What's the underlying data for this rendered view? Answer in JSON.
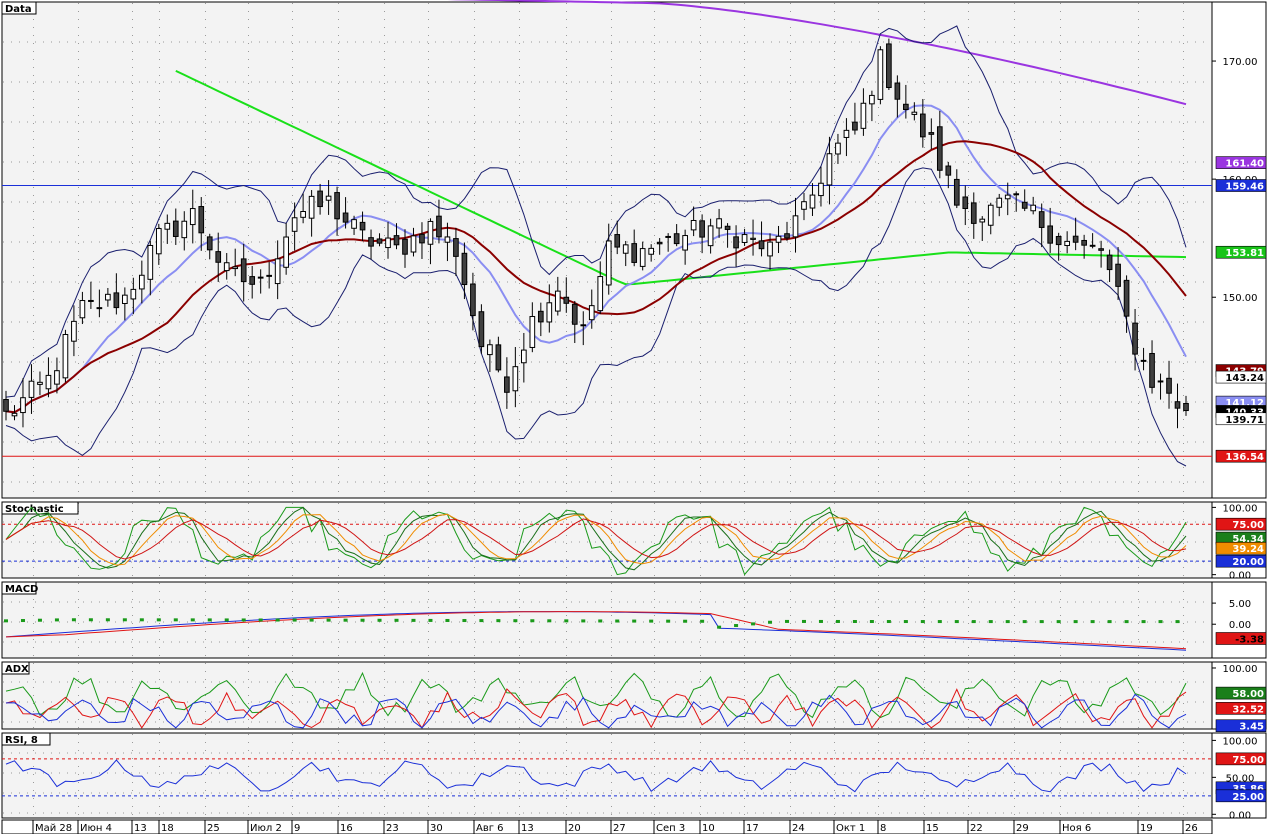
{
  "chart_data": {
    "type": "candlestick",
    "x_labels": [
      "Май 28",
      "Июн 4",
      "13",
      "18",
      "25",
      "Июл 2",
      "9",
      "16",
      "23",
      "30",
      "Авг 6",
      "13",
      "20",
      "27",
      "Сеп 3",
      "10",
      "17",
      "24",
      "Окт 1",
      "8",
      "15",
      "22",
      "29",
      "Ноя 6",
      "19",
      "26"
    ],
    "panels": [
      {
        "name": "price",
        "title": "Data",
        "ylim": [
          133,
          175
        ],
        "ticks": [
          170.0,
          160.0,
          150.0
        ],
        "price_line": 159.46,
        "support_line": 136.54,
        "badges": [
          {
            "value": "161.40",
            "color": "#9a35e0",
            "text_color": "#ffffff",
            "y_value": 161.4
          },
          {
            "value": "159.46",
            "color": "#1a2fd8",
            "text_color": "#ffffff",
            "y_value": 159.46
          },
          {
            "value": "153.81",
            "color": "#19c419",
            "text_color": "#ffffff",
            "y_value": 153.81
          },
          {
            "value": "143.79",
            "color": "#8b0000",
            "text_color": "#ffffff",
            "y_value": 143.79
          },
          {
            "value": "143.24",
            "color": "#ffffff",
            "text_color": "#000000",
            "y_value": 143.24
          },
          {
            "value": "141.12",
            "color": "#8a8ef2",
            "text_color": "#ffffff",
            "y_value": 141.12
          },
          {
            "value": "140.33",
            "color": "#000000",
            "text_color": "#ffffff",
            "y_value": 140.33
          },
          {
            "value": "139.71",
            "color": "#ffffff",
            "text_color": "#000000",
            "y_value": 139.71
          },
          {
            "value": "136.54",
            "color": "#e01515",
            "text_color": "#ffffff",
            "y_value": 136.54
          }
        ]
      },
      {
        "name": "stochastic",
        "title": "Stochastic",
        "ylim": [
          -5,
          108
        ],
        "ticks": [
          100.0,
          0.0
        ],
        "levels": [
          75,
          20
        ],
        "badges": [
          {
            "value": "75.00",
            "color": "#e01515",
            "text_color": "#ffffff",
            "y_value": 75
          },
          {
            "value": "54.34",
            "color": "#1a7f1a",
            "text_color": "#ffffff",
            "y_value": 54.34
          },
          {
            "value": "39.24",
            "color": "#f08c00",
            "text_color": "#ffffff",
            "y_value": 39.24
          },
          {
            "value": "20.00",
            "color": "#1a2fd8",
            "text_color": "#ffffff",
            "y_value": 20
          }
        ]
      },
      {
        "name": "macd",
        "title": "MACD",
        "ylim": [
          -8,
          10
        ],
        "ticks": [
          5.0,
          0.0
        ],
        "badges": [
          {
            "value": "-3.38",
            "color": "#e01515",
            "text_color": "#000000",
            "y_value": -3.38
          }
        ]
      },
      {
        "name": "adx",
        "title": "ADX",
        "ylim": [
          -2,
          110
        ],
        "ticks": [
          100.0
        ],
        "badges": [
          {
            "value": "58.00",
            "color": "#1a7f1a",
            "text_color": "#ffffff",
            "y_value": 58
          },
          {
            "value": "32.52",
            "color": "#e01515",
            "text_color": "#ffffff",
            "y_value": 32.52
          },
          {
            "value": "3.45",
            "color": "#1a2fd8",
            "text_color": "#ffffff",
            "y_value": 3.45
          }
        ]
      },
      {
        "name": "rsi",
        "title": "RSI, 8",
        "ylim": [
          -5,
          110
        ],
        "ticks": [
          100.0,
          50.0,
          0.0
        ],
        "levels": [
          75,
          25
        ],
        "badges": [
          {
            "value": "75.00",
            "color": "#e01515",
            "text_color": "#ffffff",
            "y_value": 75
          },
          {
            "value": "35.86",
            "color": "#1a2fd8",
            "text_color": "#ffffff",
            "y_value": 35.86
          },
          {
            "value": "25.00",
            "color": "#1a2fd8",
            "text_color": "#ffffff",
            "y_value": 25
          }
        ]
      }
    ]
  }
}
